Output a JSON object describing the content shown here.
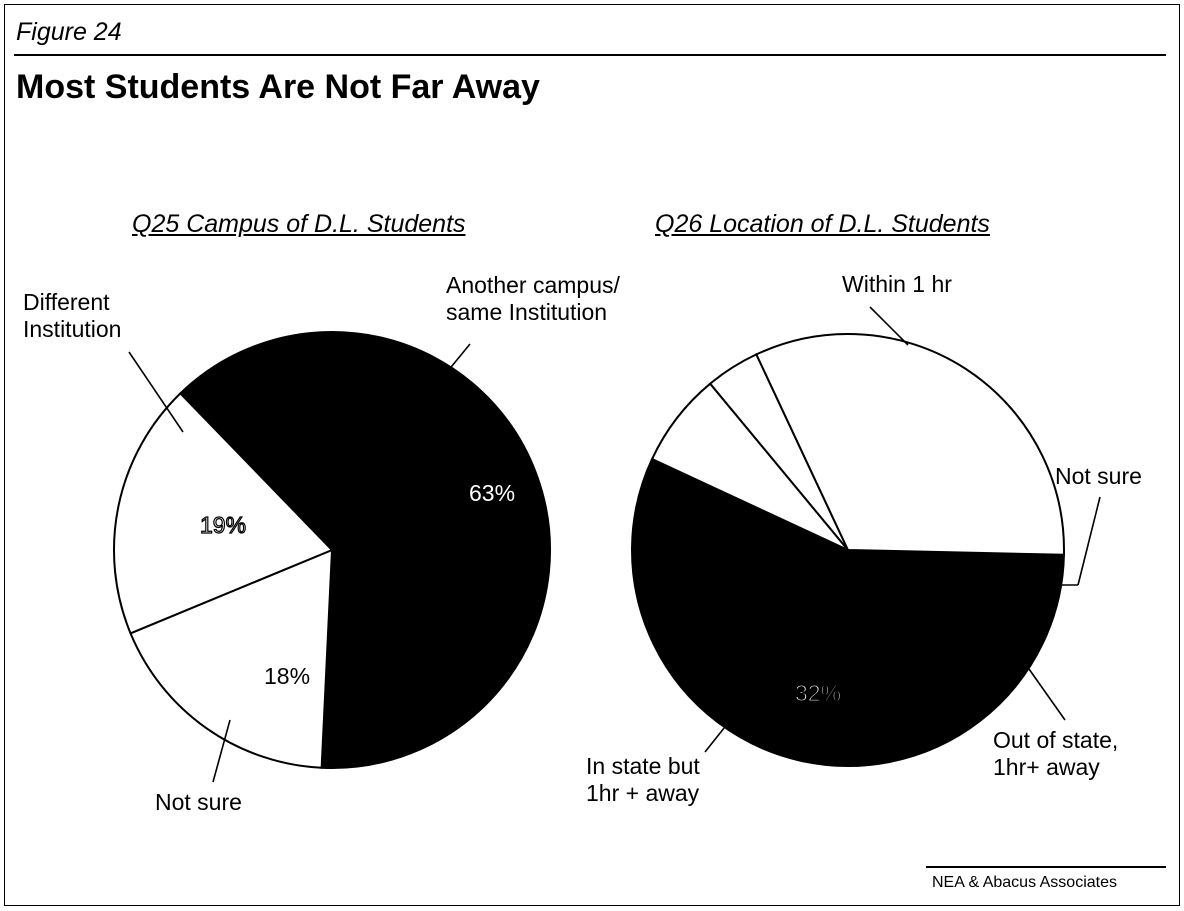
{
  "figure_label": "Figure 24",
  "title": "Most Students Are Not Far Away",
  "source": "NEA & Abacus Associates",
  "chart_data": [
    {
      "type": "pie",
      "title": "Q25 Campus of D.L. Students",
      "slices": [
        {
          "label": "Another campus/ same Institution",
          "label_lines": [
            "Another campus/",
            "same Institution"
          ],
          "value": 63,
          "pct_text": "63%",
          "color": "#000000"
        },
        {
          "label": "Not sure",
          "label_lines": [
            "Not sure"
          ],
          "value": 18,
          "pct_text": "18%",
          "color": "#ffffff"
        },
        {
          "label": "Different Institution",
          "label_lines": [
            "Different",
            "Institution"
          ],
          "value": 19,
          "pct_text": "19%",
          "color": "#ffffff"
        }
      ]
    },
    {
      "type": "pie",
      "title": "Q26 Location of D.L. Students",
      "slices": [
        {
          "label": "Within 1 hr",
          "label_lines": [
            "Within 1 hr"
          ],
          "value": 56,
          "pct_text": "56%",
          "color": "#000000"
        },
        {
          "label": "Not sure",
          "label_lines": [
            "Not sure"
          ],
          "value": 7,
          "pct_text": "7%",
          "color": "#ffffff"
        },
        {
          "label": "Out of state, 1hr+ away",
          "label_lines": [
            "Out of state,",
            "1hr+ away"
          ],
          "value": 4,
          "pct_text": "4%",
          "color": "#ffffff"
        },
        {
          "label": "In state but 1hr + away",
          "label_lines": [
            "In state but",
            "1hr + away"
          ],
          "value": 32,
          "pct_text": "32%",
          "color": "#ffffff"
        }
      ]
    }
  ]
}
